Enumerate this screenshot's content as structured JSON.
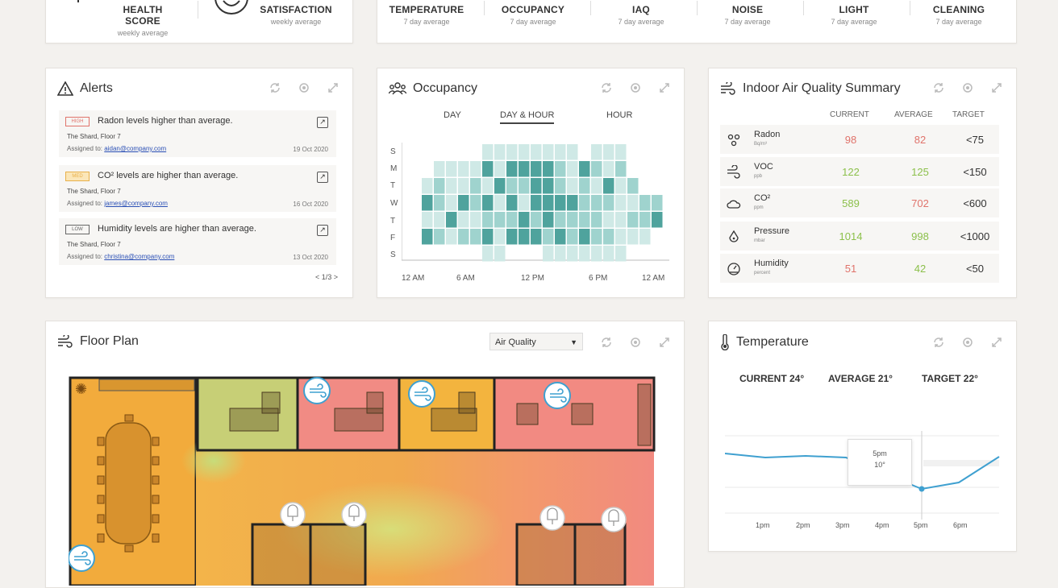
{
  "top_metrics": {
    "left": [
      {
        "label": "HEALTH SCORE",
        "sub": "weekly average"
      },
      {
        "label": "SATISFACTION",
        "sub": "weekly average"
      }
    ],
    "right": [
      {
        "label": "TEMPERATURE",
        "sub": "7 day average"
      },
      {
        "label": "OCCUPANCY",
        "sub": "7 day average"
      },
      {
        "label": "IAQ",
        "sub": "7 day average"
      },
      {
        "label": "NOISE",
        "sub": "7 day average"
      },
      {
        "label": "LIGHT",
        "sub": "7 day average"
      },
      {
        "label": "CLEANING",
        "sub": "7 day average"
      }
    ]
  },
  "alerts": {
    "title": "Alerts",
    "items": [
      {
        "tag": "HIGH",
        "message": "Radon levels higher than average.",
        "location": "The Shard, Floor 7",
        "assigned_label": "Assigned to:",
        "assignee": "aidan@company.com",
        "date": "19 Oct 2020",
        "color": "#e0736b"
      },
      {
        "tag": "MED",
        "message": "CO² levels are higher than average.",
        "location": "The Shard, Floor 7",
        "assigned_label": "Assigned to:",
        "assignee": "james@company.com",
        "date": "16 Oct 2020",
        "color": "#e8b04a"
      },
      {
        "tag": "LOW",
        "message": "Humidity levels are higher than average.",
        "location": "The Shard, Floor 7",
        "assigned_label": "Assigned to:",
        "assignee": "christina@company.com",
        "date": "13 Oct 2020",
        "color": "#666666"
      }
    ],
    "pager": "< 1/3 >"
  },
  "occupancy": {
    "title": "Occupancy",
    "tabs": [
      "DAY",
      "DAY & HOUR",
      "HOUR"
    ],
    "active_tab": 1,
    "days": [
      "S",
      "M",
      "T",
      "W",
      "T",
      "F",
      "S"
    ],
    "x_labels": [
      "12 AM",
      "6 AM",
      "12 PM",
      "6 PM",
      "12 AM"
    ],
    "heatmap": [
      [
        0,
        0,
        0,
        0,
        0,
        0,
        1,
        1,
        1,
        1,
        1,
        1,
        1,
        1,
        0,
        1,
        1,
        1,
        0,
        0,
        0,
        0
      ],
      [
        0,
        0,
        1,
        1,
        1,
        1,
        3,
        1,
        3,
        3,
        3,
        3,
        2,
        1,
        3,
        2,
        1,
        2,
        0,
        0,
        0,
        0
      ],
      [
        0,
        1,
        2,
        1,
        1,
        2,
        1,
        3,
        2,
        2,
        3,
        3,
        2,
        1,
        2,
        1,
        3,
        1,
        2,
        0,
        0,
        0
      ],
      [
        0,
        3,
        2,
        1,
        3,
        2,
        3,
        1,
        3,
        1,
        3,
        3,
        3,
        3,
        2,
        2,
        2,
        1,
        1,
        2,
        2,
        0
      ],
      [
        0,
        1,
        1,
        3,
        1,
        1,
        2,
        2,
        2,
        3,
        2,
        3,
        2,
        2,
        2,
        2,
        1,
        1,
        2,
        2,
        3,
        0
      ],
      [
        0,
        3,
        2,
        1,
        2,
        2,
        3,
        1,
        3,
        3,
        3,
        2,
        3,
        2,
        3,
        2,
        2,
        1,
        1,
        1,
        0,
        0
      ],
      [
        0,
        0,
        0,
        0,
        0,
        0,
        1,
        1,
        0,
        0,
        0,
        1,
        1,
        1,
        1,
        1,
        1,
        1,
        0,
        0,
        0,
        0
      ]
    ],
    "colors": [
      "#ffffff",
      "#cfe9e6",
      "#9fd3ce",
      "#4fa39d"
    ]
  },
  "iaq": {
    "title": "Indoor Air Quality Summary",
    "headers": [
      "CURRENT",
      "AVERAGE",
      "TARGET"
    ],
    "rows": [
      {
        "name": "Radon",
        "unit": "Bq/m³",
        "icon": "radon-icon",
        "current": "98",
        "average": "82",
        "target": "<75",
        "c_color": "#e0736b",
        "a_color": "#e0736b"
      },
      {
        "name": "VOC",
        "unit": "ppb",
        "icon": "voc-icon",
        "current": "122",
        "average": "125",
        "target": "<150",
        "c_color": "#8cc04b",
        "a_color": "#8cc04b"
      },
      {
        "name": "CO²",
        "unit": "ppm",
        "icon": "cloud-icon",
        "current": "589",
        "average": "702",
        "target": "<600",
        "c_color": "#8cc04b",
        "a_color": "#e0736b"
      },
      {
        "name": "Pressure",
        "unit": "mbar",
        "icon": "pressure-icon",
        "current": "1014",
        "average": "998",
        "target": "<1000",
        "c_color": "#8cc04b",
        "a_color": "#8cc04b"
      },
      {
        "name": "Humidity",
        "unit": "percent",
        "icon": "humidity-icon",
        "current": "51",
        "average": "42",
        "target": "<50",
        "c_color": "#e0736b",
        "a_color": "#8cc04b"
      }
    ]
  },
  "floor_plan": {
    "title": "Floor Plan",
    "select_value": "Air Quality"
  },
  "temperature": {
    "title": "Temperature",
    "current": "CURRENT 24°",
    "average": "AVERAGE 21°",
    "target": "TARGET 22°",
    "tooltip_time": "5pm",
    "tooltip_value": "10°",
    "x_labels": [
      "1pm",
      "2pm",
      "3pm",
      "4pm",
      "5pm",
      "6pm"
    ],
    "line_color": "#3fa0d0"
  }
}
